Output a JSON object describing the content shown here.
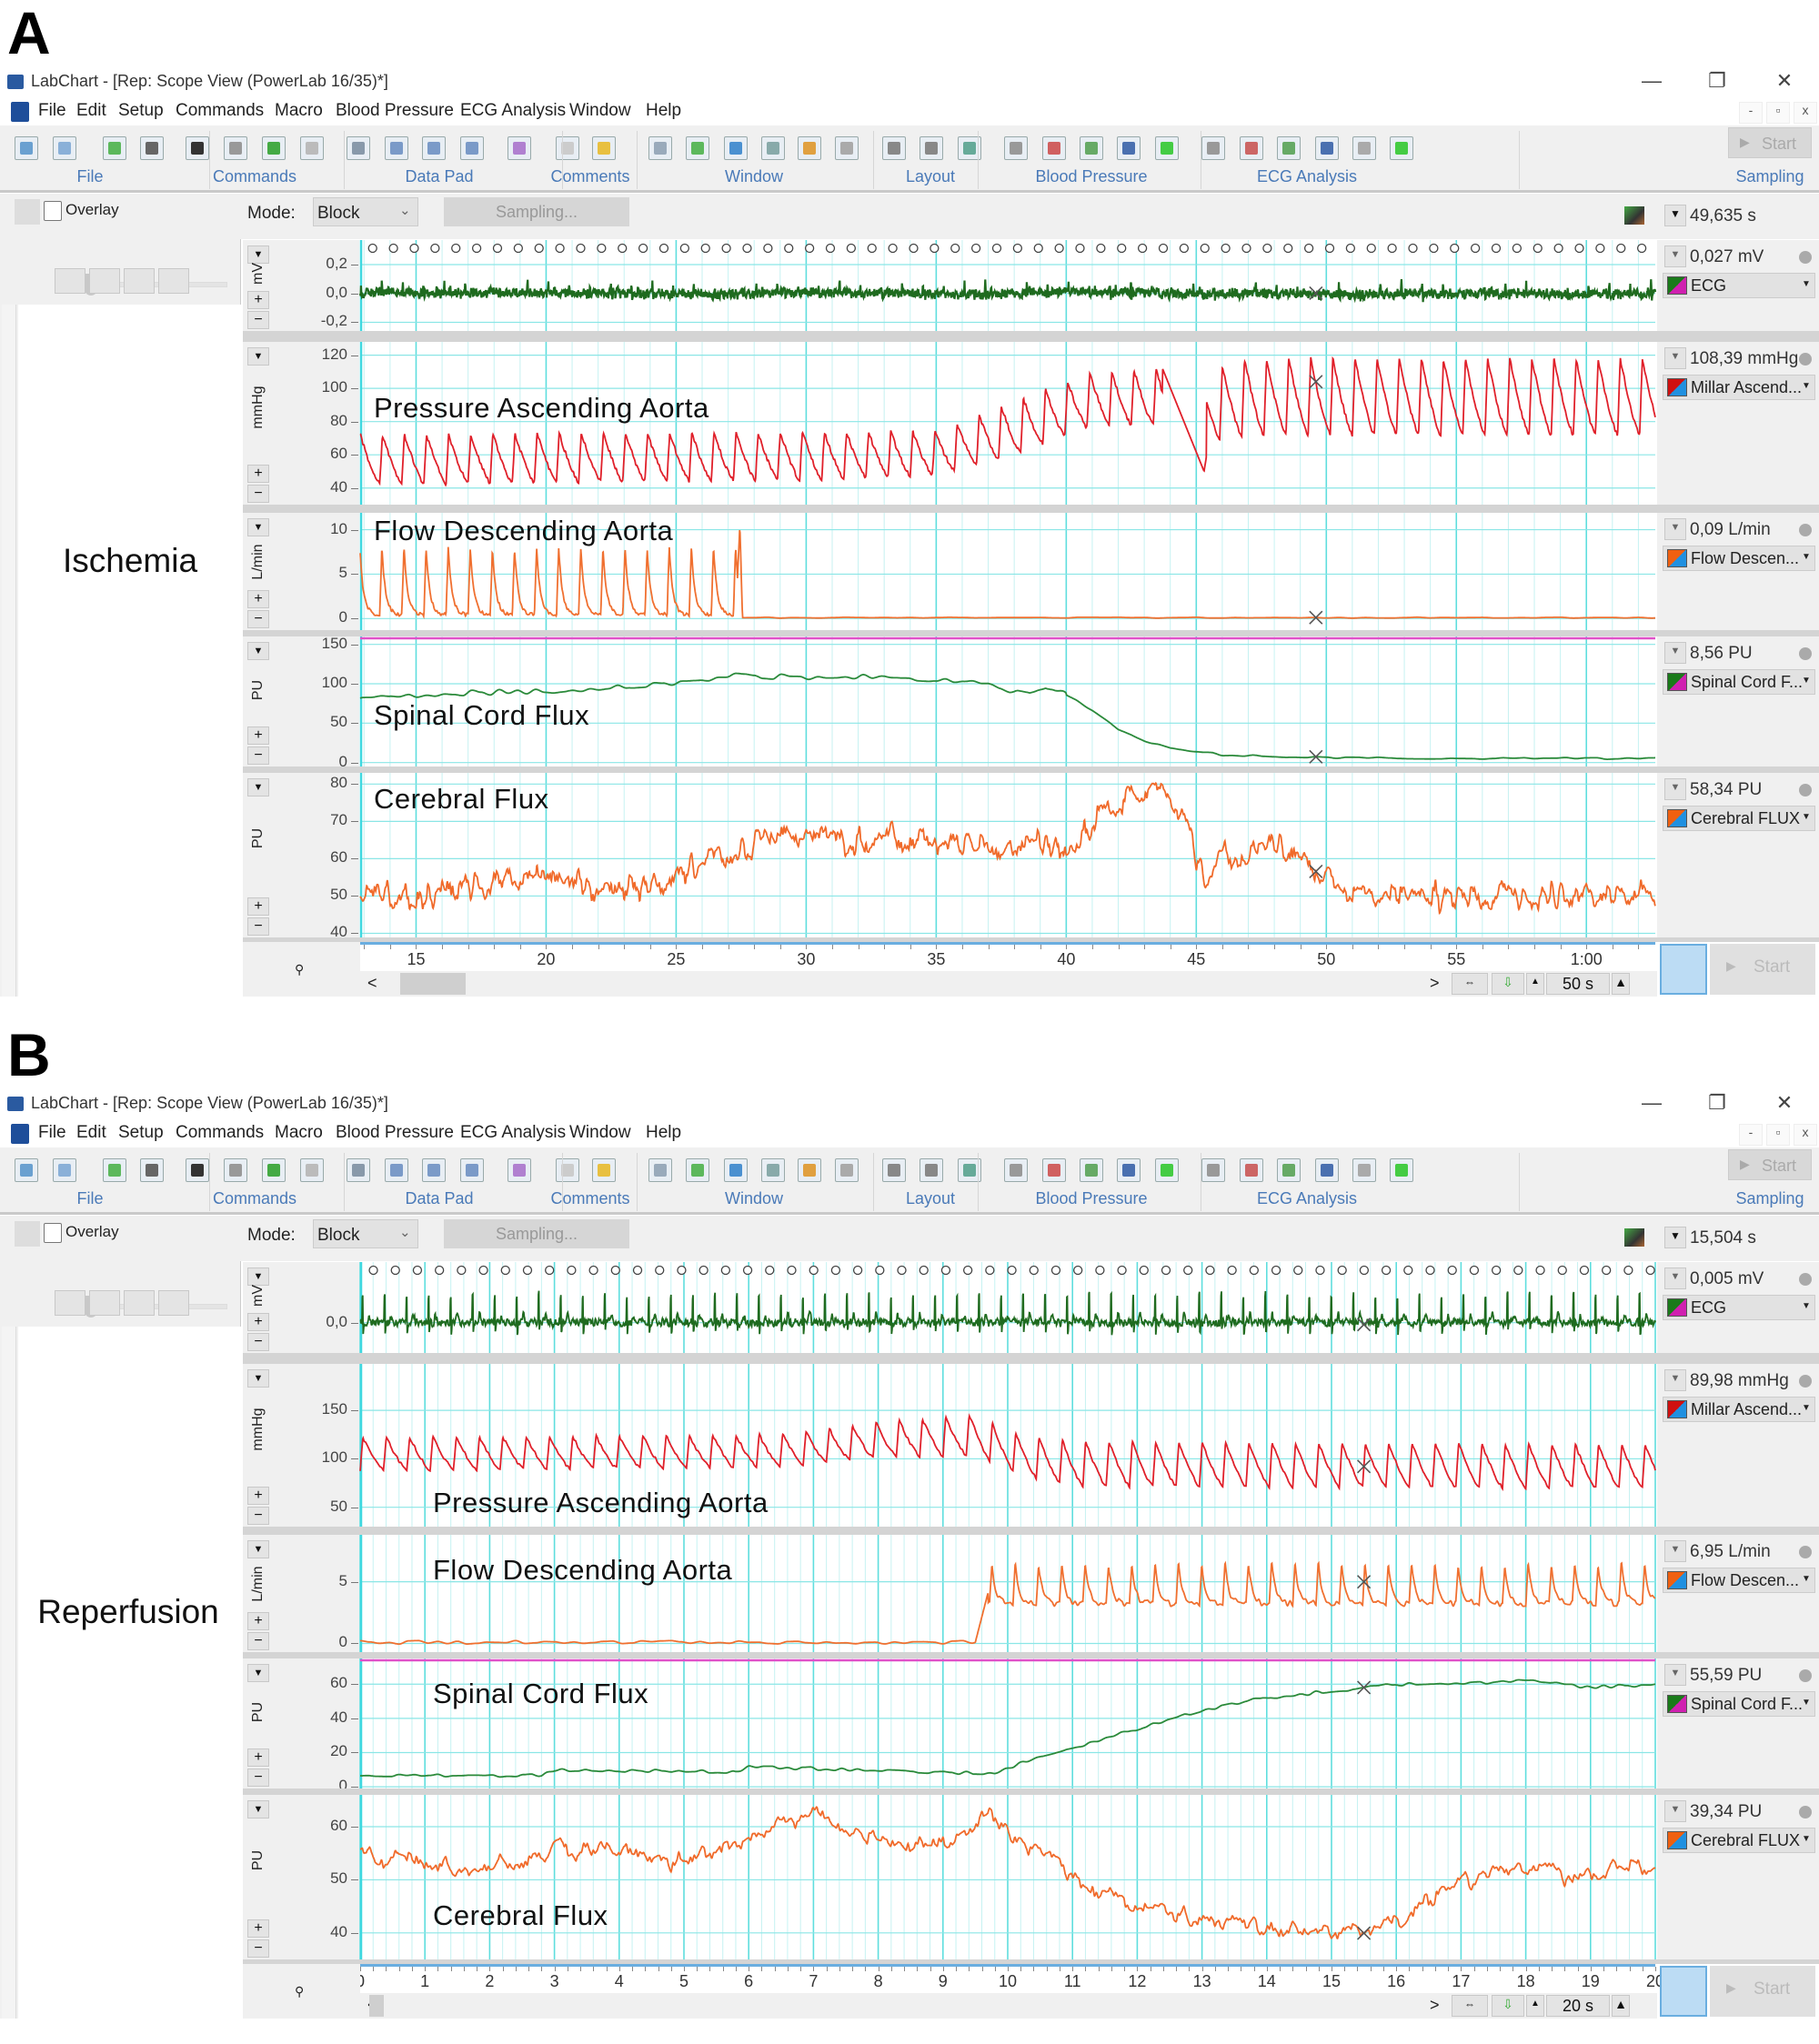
{
  "app": {
    "title": "LabChart - [Rep: Scope View (PowerLab 16/35)*]",
    "window_controls": [
      "—",
      "❐",
      "✕"
    ],
    "mdi_controls": [
      "-",
      "▫",
      "x"
    ],
    "menu": [
      "File",
      "Edit",
      "Setup",
      "Commands",
      "Macro",
      "Blood Pressure",
      "ECG Analysis",
      "Window",
      "Help"
    ],
    "toolbar_groups": [
      "File",
      "Commands",
      "Data Pad",
      "Comments",
      "Window",
      "Layout",
      "Blood Pressure",
      "ECG Analysis",
      "Sampling"
    ],
    "start_label": "Start",
    "overlay_label": "Overlay",
    "mode_label": "Mode:",
    "mode_value": "Block",
    "sampling_button": "Sampling...",
    "scroll_left": "<",
    "scroll_right": ">",
    "plus": "+",
    "minus": "−"
  },
  "panels": [
    {
      "letter": "A",
      "condition": "Ischemia",
      "time_readout": "49,635 s",
      "time_scale": "50 s",
      "cursor_time": 49.6,
      "x_range": [
        12.85,
        62.65
      ],
      "x_ticks": [
        {
          "t": 15,
          "label": "15"
        },
        {
          "t": 20,
          "label": "20"
        },
        {
          "t": 25,
          "label": "25"
        },
        {
          "t": 30,
          "label": "30"
        },
        {
          "t": 35,
          "label": "35"
        },
        {
          "t": 40,
          "label": "40"
        },
        {
          "t": 45,
          "label": "45"
        },
        {
          "t": 50,
          "label": "50"
        },
        {
          "t": 55,
          "label": "55"
        },
        {
          "t": 60,
          "label": "1:00"
        }
      ],
      "channels": [
        {
          "units": "mV",
          "overlay": "",
          "readout": "0,027 mV",
          "name": "ECG",
          "color": "#1f6b1f",
          "swatch": [
            "#1a7a1a",
            "#d020b0"
          ],
          "y_range": [
            -0.26,
            0.37
          ],
          "ticks": [
            {
              "v": 0.2,
              "label": "0,2"
            },
            {
              "v": 0.0,
              "label": "0,0"
            },
            {
              "v": -0.2,
              "label": "-0,2"
            }
          ]
        },
        {
          "units": "mmHg",
          "overlay": "Pressure Ascending Aorta",
          "readout": "108,39 mmHg",
          "name": "Millar Ascend...",
          "color": "#e0202a",
          "swatch": [
            "#d01010",
            "#2090e0"
          ],
          "y_range": [
            30,
            128
          ],
          "ticks": [
            {
              "v": 120,
              "label": "120"
            },
            {
              "v": 100,
              "label": "100"
            },
            {
              "v": 80,
              "label": "80"
            },
            {
              "v": 60,
              "label": "60"
            },
            {
              "v": 40,
              "label": "40"
            }
          ]
        },
        {
          "units": "L/min",
          "overlay": "Flow Descending Aorta",
          "readout": "0,09 L/min",
          "name": "Flow Descen...",
          "color": "#f07030",
          "swatch": [
            "#f06010",
            "#2090e0"
          ],
          "y_range": [
            -1.3,
            11.9
          ],
          "ticks": [
            {
              "v": 10,
              "label": "10"
            },
            {
              "v": 5,
              "label": "5"
            },
            {
              "v": 0,
              "label": "0"
            }
          ]
        },
        {
          "units": "PU",
          "overlay": "Spinal Cord Flux",
          "readout": "8,56 PU",
          "name": "Spinal Cord F...",
          "color": "#2a8a3a",
          "swatch": [
            "#1a7a1a",
            "#d020b0"
          ],
          "y_range": [
            -5,
            160
          ],
          "ticks": [
            {
              "v": 150,
              "label": "150"
            },
            {
              "v": 100,
              "label": "100"
            },
            {
              "v": 50,
              "label": "50"
            },
            {
              "v": 0,
              "label": "0"
            }
          ]
        },
        {
          "units": "PU",
          "overlay": "Cerebral Flux",
          "readout": "58,34 PU",
          "name": "Cerebral FLUX",
          "color": "#f06a2a",
          "swatch": [
            "#f06010",
            "#2090e0"
          ],
          "y_range": [
            38.9,
            83
          ],
          "ticks": [
            {
              "v": 80,
              "label": "80"
            },
            {
              "v": 70,
              "label": "70"
            },
            {
              "v": 60,
              "label": "60"
            },
            {
              "v": 50,
              "label": "50"
            },
            {
              "v": 40,
              "label": "40"
            }
          ]
        }
      ]
    },
    {
      "letter": "B",
      "condition": "Reperfusion",
      "time_readout": "15,504 s",
      "time_scale": "20 s",
      "cursor_time": 15.5,
      "x_range": [
        0,
        20
      ],
      "x_ticks": [
        {
          "t": 0,
          "label": "0"
        },
        {
          "t": 1,
          "label": "1"
        },
        {
          "t": 2,
          "label": "2"
        },
        {
          "t": 3,
          "label": "3"
        },
        {
          "t": 4,
          "label": "4"
        },
        {
          "t": 5,
          "label": "5"
        },
        {
          "t": 6,
          "label": "6"
        },
        {
          "t": 7,
          "label": "7"
        },
        {
          "t": 8,
          "label": "8"
        },
        {
          "t": 9,
          "label": "9"
        },
        {
          "t": 10,
          "label": "10"
        },
        {
          "t": 11,
          "label": "11"
        },
        {
          "t": 12,
          "label": "12"
        },
        {
          "t": 13,
          "label": "13"
        },
        {
          "t": 14,
          "label": "14"
        },
        {
          "t": 15,
          "label": "15"
        },
        {
          "t": 16,
          "label": "16"
        },
        {
          "t": 17,
          "label": "17"
        },
        {
          "t": 18,
          "label": "18"
        },
        {
          "t": 19,
          "label": "19"
        },
        {
          "t": 20,
          "label": "20"
        }
      ],
      "channels": [
        {
          "units": "mV",
          "overlay": "",
          "readout": "0,005 mV",
          "name": "ECG",
          "color": "#1f6b1f",
          "swatch": [
            "#1a7a1a",
            "#d020b0"
          ],
          "y_range": [
            -0.3,
            0.6
          ],
          "ticks": [
            {
              "v": 0.0,
              "label": "0,0"
            }
          ]
        },
        {
          "units": "mmHg",
          "overlay": "Pressure Ascending Aorta",
          "readout": "89,98 mmHg",
          "name": "Millar Ascend...",
          "color": "#e0202a",
          "swatch": [
            "#d01010",
            "#2090e0"
          ],
          "y_range": [
            30,
            198
          ],
          "ticks": [
            {
              "v": 150,
              "label": "150"
            },
            {
              "v": 100,
              "label": "100"
            },
            {
              "v": 50,
              "label": "50"
            }
          ]
        },
        {
          "units": "L/min",
          "overlay": "Flow Descending Aorta",
          "readout": "6,95 L/min",
          "name": "Flow Descen...",
          "color": "#f07030",
          "swatch": [
            "#f06010",
            "#2090e0"
          ],
          "y_range": [
            -0.7,
            8.8
          ],
          "ticks": [
            {
              "v": 5,
              "label": "5"
            },
            {
              "v": 0,
              "label": "0"
            }
          ]
        },
        {
          "units": "PU",
          "overlay": "Spinal Cord Flux",
          "readout": "55,59 PU",
          "name": "Spinal Cord F...",
          "color": "#2a8a3a",
          "swatch": [
            "#1a7a1a",
            "#d020b0"
          ],
          "y_range": [
            -1,
            75
          ],
          "ticks": [
            {
              "v": 60,
              "label": "60"
            },
            {
              "v": 40,
              "label": "40"
            },
            {
              "v": 20,
              "label": "20"
            },
            {
              "v": 0,
              "label": "0"
            }
          ]
        },
        {
          "units": "PU",
          "overlay": "Cerebral Flux",
          "readout": "39,34 PU",
          "name": "Cerebral FLUX",
          "color": "#f06a2a",
          "swatch": [
            "#f06010",
            "#2090e0"
          ],
          "y_range": [
            35,
            66
          ],
          "ticks": [
            {
              "v": 60,
              "label": "60"
            },
            {
              "v": 50,
              "label": "50"
            },
            {
              "v": 40,
              "label": "40"
            }
          ]
        }
      ]
    }
  ]
}
